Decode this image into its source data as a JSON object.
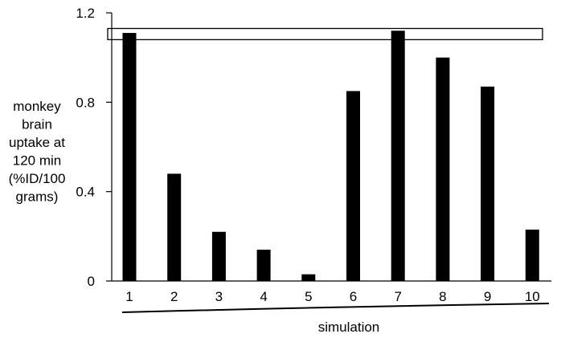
{
  "chart_data": {
    "type": "bar",
    "categories": [
      "1",
      "2",
      "3",
      "4",
      "5",
      "6",
      "7",
      "8",
      "9",
      "10"
    ],
    "values": [
      1.11,
      0.48,
      0.22,
      0.14,
      0.03,
      0.85,
      1.12,
      1.0,
      0.87,
      0.23
    ],
    "title": "",
    "xlabel": "simulation",
    "ylabel": [
      "monkey",
      "brain",
      "uptake at",
      "120 min",
      "(%ID/100",
      "grams)"
    ],
    "yticks": [
      "0",
      "0.4",
      "0.8",
      "1.2"
    ],
    "ylim": [
      0,
      1.2
    ],
    "reference_band": [
      1.08,
      1.13
    ],
    "grid": false,
    "legend": "none",
    "bar_color": "#000000"
  }
}
